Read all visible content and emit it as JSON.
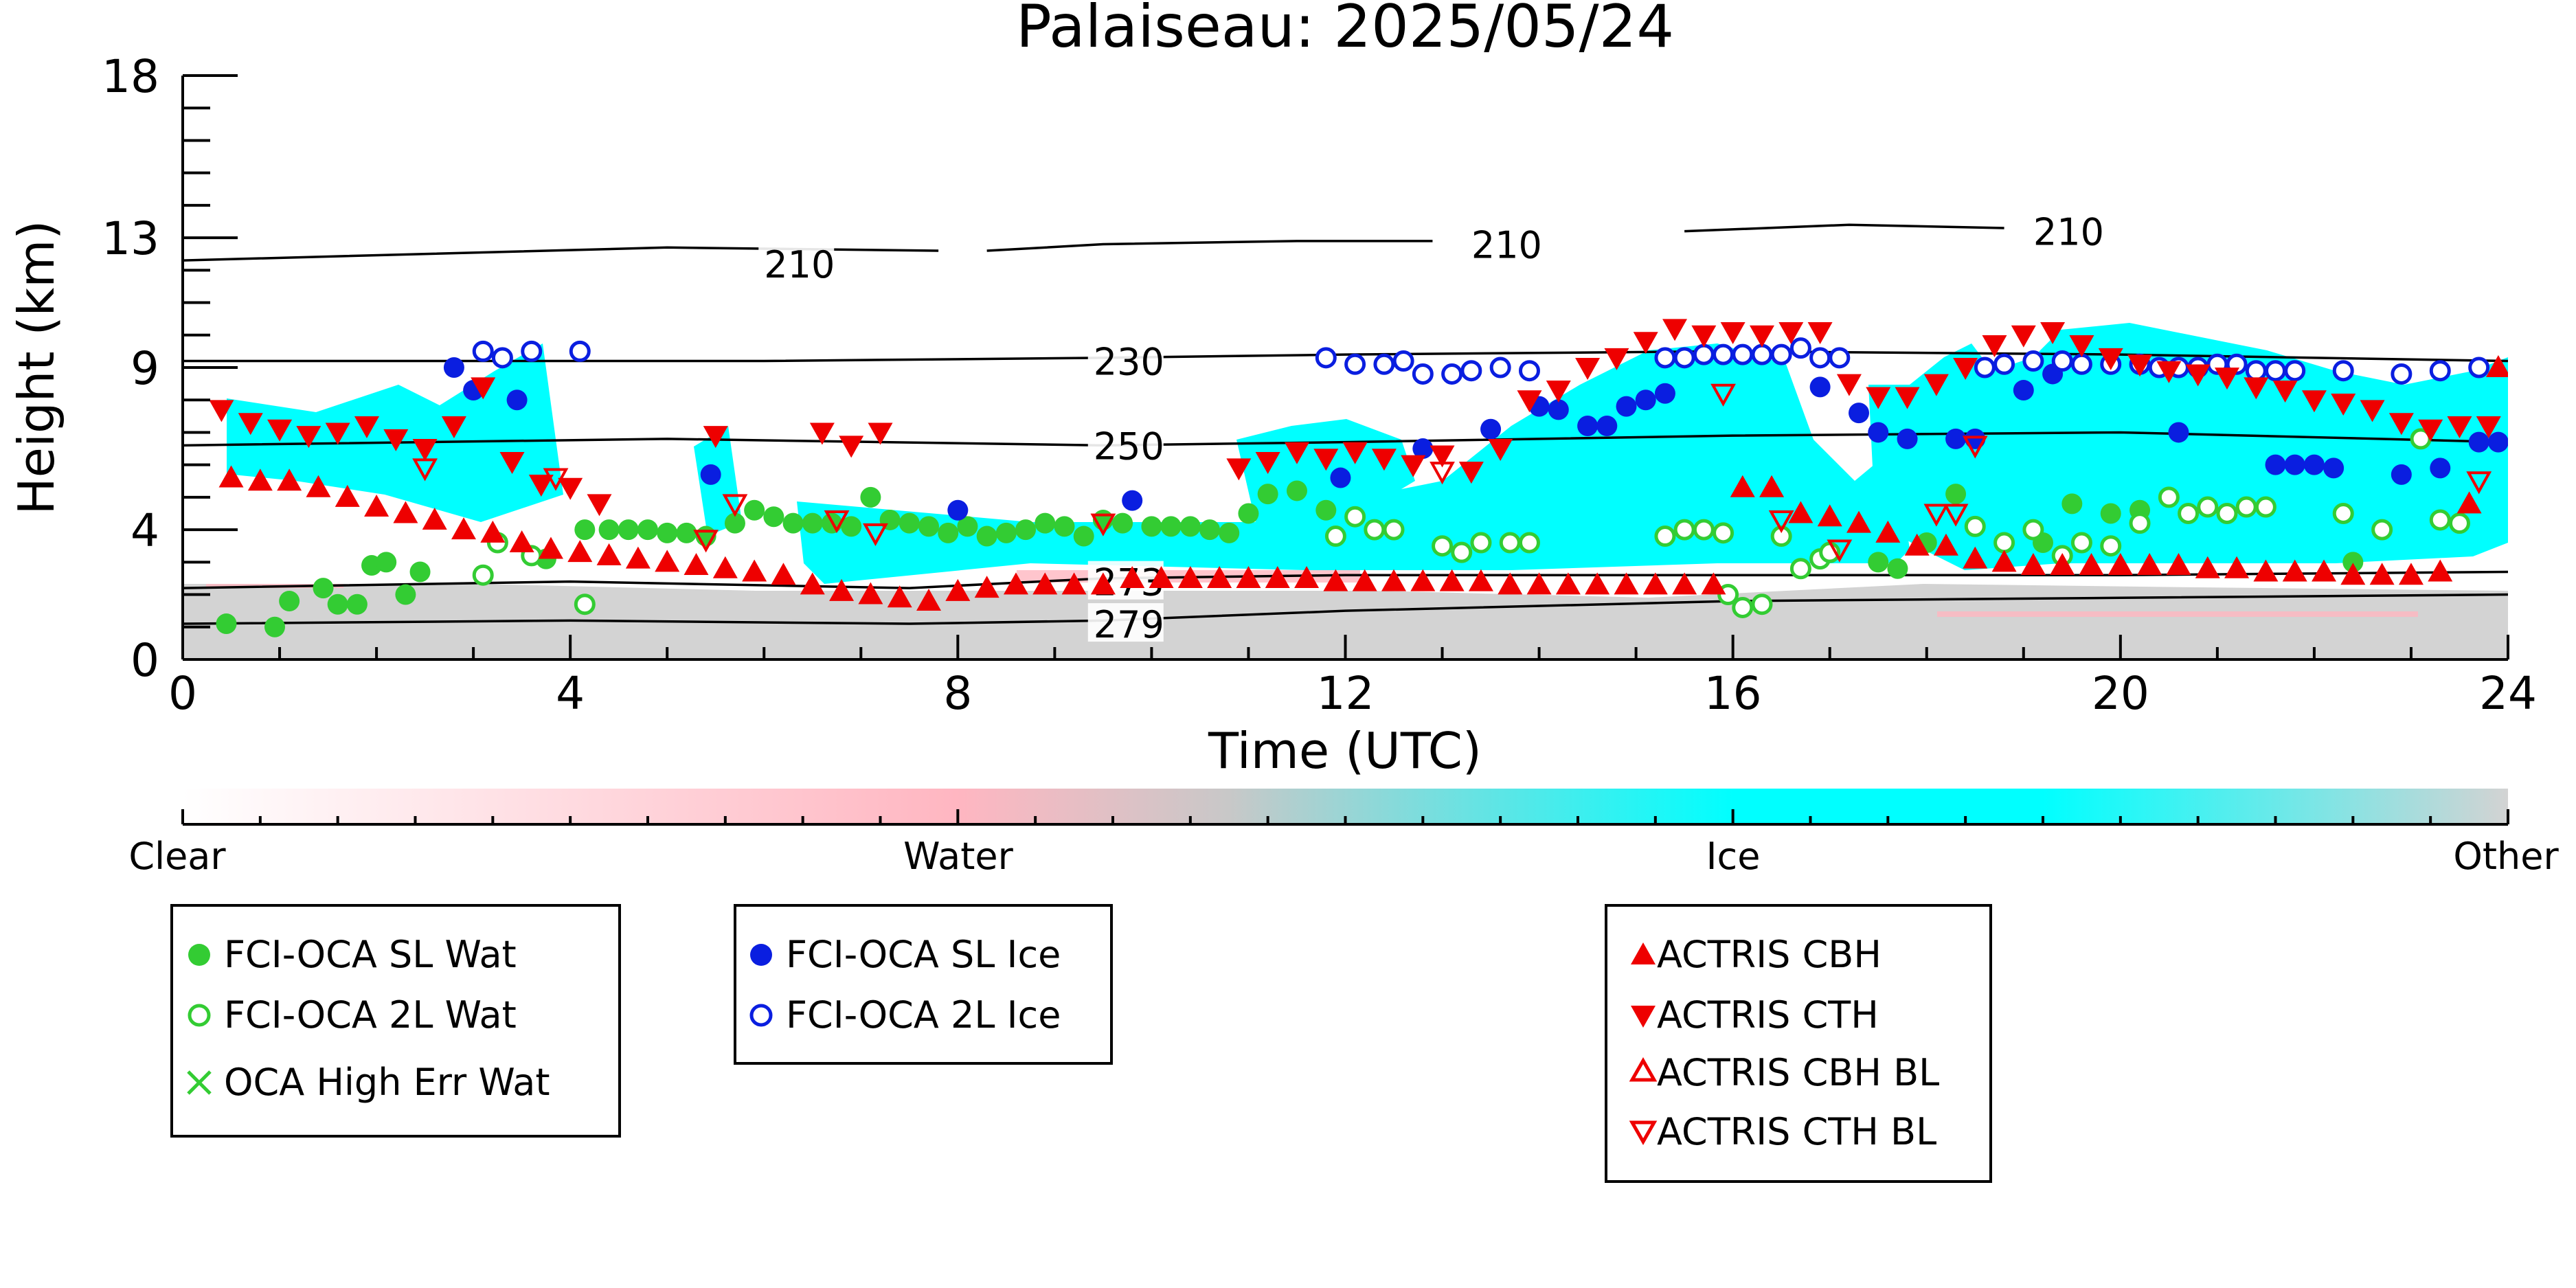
{
  "chart_data": {
    "type": "scatter",
    "title": "Palaiseau: 2025/05/24",
    "xlabel": "Time (UTC)",
    "ylabel": "Height (km)",
    "xlim": [
      0,
      24
    ],
    "ylim": [
      0,
      18
    ],
    "x_ticks": [
      "0",
      "4",
      "8",
      "12",
      "16",
      "20",
      "24"
    ],
    "y_ticks": [
      "0",
      "4",
      "9",
      "13",
      "18"
    ],
    "colorbar": {
      "labels": [
        "Clear",
        "Water",
        "Ice",
        "Other"
      ],
      "colors": [
        "#ffffff",
        "#ffb6c1",
        "#00ffff",
        "#d3d3d3"
      ]
    },
    "isotherms": [
      {
        "label": "210",
        "segments": [
          [
            [
              0,
              12.3
            ],
            [
              5,
              12.7
            ],
            [
              7.8,
              12.6
            ]
          ],
          [
            [
              8.3,
              12.6
            ],
            [
              9.5,
              12.8
            ],
            [
              11.5,
              12.9
            ],
            [
              12.9,
              12.9
            ]
          ],
          [
            [
              15.5,
              13.2
            ],
            [
              17.2,
              13.4
            ],
            [
              18.8,
              13.3
            ]
          ]
        ],
        "label_at": [
          [
            6.0,
            12.2
          ],
          [
            13.3,
            12.8
          ],
          [
            19.1,
            13.2
          ]
        ]
      },
      {
        "label": "230",
        "segments": [
          [
            [
              0,
              9.2
            ],
            [
              6,
              9.2
            ],
            [
              9.5,
              9.3
            ],
            [
              12,
              9.4
            ],
            [
              16,
              9.5
            ],
            [
              20,
              9.4
            ],
            [
              24,
              9.2
            ]
          ]
        ],
        "label_at": [
          [
            9.4,
            9.2
          ]
        ]
      },
      {
        "label": "250",
        "segments": [
          [
            [
              0,
              6.6
            ],
            [
              5,
              6.8
            ],
            [
              9.5,
              6.6
            ],
            [
              12,
              6.7
            ],
            [
              16,
              6.9
            ],
            [
              20,
              7.0
            ],
            [
              24,
              6.7
            ]
          ]
        ],
        "label_at": [
          [
            9.4,
            6.6
          ]
        ]
      },
      {
        "label": "273",
        "segments": [
          [
            [
              0,
              2.2
            ],
            [
              4,
              2.4
            ],
            [
              7.5,
              2.2
            ],
            [
              9.5,
              2.5
            ],
            [
              12,
              2.6
            ],
            [
              16,
              2.6
            ],
            [
              20,
              2.6
            ],
            [
              24,
              2.7
            ]
          ]
        ],
        "label_at": [
          [
            9.4,
            2.4
          ]
        ]
      },
      {
        "label": "279",
        "segments": [
          [
            [
              0,
              1.1
            ],
            [
              4,
              1.2
            ],
            [
              7.5,
              1.1
            ],
            [
              9.5,
              1.2
            ],
            [
              12,
              1.5
            ],
            [
              16,
              1.8
            ],
            [
              20,
              1.9
            ],
            [
              24,
              2.0
            ]
          ]
        ],
        "label_at": [
          [
            9.4,
            1.1
          ]
        ]
      }
    ],
    "series": [
      {
        "name": "FCI-OCA SL Wat",
        "color": "#33cc33",
        "marker": "filled-circle",
        "x": [
          0.45,
          0.95,
          1.1,
          1.45,
          1.6,
          1.8,
          1.95,
          2.1,
          2.3,
          2.45,
          3.75,
          4.15,
          4.4,
          4.6,
          4.8,
          5.0,
          5.2,
          5.4,
          5.7,
          5.9,
          6.1,
          6.3,
          6.5,
          6.7,
          6.9,
          7.1,
          7.3,
          7.5,
          7.7,
          7.9,
          8.1,
          8.3,
          8.5,
          8.7,
          8.9,
          9.1,
          9.3,
          9.5,
          9.7,
          10.0,
          10.2,
          10.4,
          10.6,
          10.8,
          11.0,
          11.2,
          11.5,
          11.8,
          17.5,
          17.7,
          18.0,
          18.3,
          19.2,
          19.5,
          19.9,
          20.2,
          22.4
        ],
        "y": [
          1.1,
          1.0,
          1.8,
          2.2,
          1.7,
          1.7,
          2.9,
          3.0,
          2.0,
          2.7,
          3.1,
          4.0,
          4.0,
          4.0,
          4.0,
          3.9,
          3.9,
          3.8,
          4.2,
          4.6,
          4.4,
          4.2,
          4.2,
          4.2,
          4.1,
          5.0,
          4.3,
          4.2,
          4.1,
          3.9,
          4.1,
          3.8,
          3.9,
          4.0,
          4.2,
          4.1,
          3.8,
          4.3,
          4.2,
          4.1,
          4.1,
          4.1,
          4.0,
          3.9,
          4.5,
          5.1,
          5.2,
          4.6,
          3.0,
          2.8,
          3.6,
          5.1,
          3.6,
          4.8,
          4.5,
          4.6,
          3.0
        ]
      },
      {
        "name": "FCI-OCA 2L Wat",
        "color": "#33cc33",
        "marker": "open-circle",
        "x": [
          3.1,
          3.25,
          3.6,
          4.15,
          11.9,
          12.1,
          12.3,
          12.5,
          13.0,
          13.2,
          13.4,
          13.7,
          13.9,
          15.3,
          15.5,
          15.7,
          15.9,
          15.95,
          16.1,
          16.3,
          16.5,
          16.7,
          16.9,
          17.0,
          18.5,
          18.8,
          19.1,
          19.4,
          19.6,
          19.9,
          20.2,
          20.5,
          20.7,
          20.9,
          21.1,
          21.3,
          21.5,
          22.3,
          22.7,
          23.1,
          23.3,
          23.5
        ],
        "y": [
          2.6,
          3.6,
          3.2,
          1.7,
          3.8,
          4.4,
          4.0,
          4.0,
          3.5,
          3.3,
          3.6,
          3.6,
          3.6,
          3.8,
          4.0,
          4.0,
          3.9,
          2.0,
          1.6,
          1.7,
          3.8,
          2.8,
          3.1,
          3.3,
          4.1,
          3.6,
          4.0,
          3.2,
          3.6,
          3.5,
          4.2,
          5.0,
          4.5,
          4.7,
          4.5,
          4.7,
          4.7,
          4.5,
          4.0,
          6.8,
          4.3,
          4.2
        ]
      },
      {
        "name": "OCA High Err Wat",
        "color": "#33cc33",
        "marker": "x",
        "x": [],
        "y": []
      },
      {
        "name": "FCI-OCA SL Ice",
        "color": "#0a1ee0",
        "marker": "filled-circle",
        "x": [
          2.8,
          3.0,
          3.45,
          5.45,
          8.0,
          9.8,
          11.95,
          12.8,
          13.5,
          14.0,
          14.2,
          14.5,
          14.7,
          14.9,
          15.1,
          15.3,
          16.9,
          17.3,
          17.5,
          17.8,
          18.3,
          18.5,
          19.0,
          19.3,
          20.6,
          21.6,
          21.8,
          22.0,
          22.2,
          22.9,
          23.3,
          23.7,
          23.9
        ],
        "y": [
          9.0,
          8.3,
          8.0,
          5.7,
          4.6,
          4.9,
          5.6,
          6.5,
          7.1,
          7.8,
          7.7,
          7.2,
          7.2,
          7.8,
          8.0,
          8.2,
          8.4,
          7.6,
          7.0,
          6.8,
          6.8,
          6.8,
          8.3,
          8.8,
          7.0,
          6.0,
          6.0,
          6.0,
          5.9,
          5.7,
          5.9,
          6.7,
          6.7
        ]
      },
      {
        "name": "FCI-OCA 2L Ice",
        "color": "#0a1ee0",
        "marker": "open-circle",
        "x": [
          3.1,
          3.3,
          3.6,
          4.1,
          11.8,
          12.1,
          12.4,
          12.6,
          12.8,
          13.1,
          13.3,
          13.6,
          13.9,
          15.3,
          15.5,
          15.7,
          15.9,
          16.1,
          16.3,
          16.5,
          16.7,
          16.9,
          17.1,
          18.6,
          18.8,
          19.1,
          19.4,
          19.6,
          19.9,
          20.2,
          20.4,
          20.6,
          20.8,
          21.0,
          21.2,
          21.4,
          21.6,
          21.8,
          22.3,
          22.9,
          23.3,
          23.7
        ],
        "y": [
          9.5,
          9.3,
          9.5,
          9.5,
          9.3,
          9.1,
          9.1,
          9.2,
          8.8,
          8.8,
          8.9,
          9.0,
          8.9,
          9.3,
          9.3,
          9.4,
          9.4,
          9.4,
          9.4,
          9.4,
          9.6,
          9.3,
          9.3,
          9.0,
          9.1,
          9.2,
          9.2,
          9.1,
          9.1,
          9.1,
          9.0,
          9.0,
          9.0,
          9.1,
          9.1,
          8.9,
          8.9,
          8.9,
          8.9,
          8.8,
          8.9,
          9.0
        ]
      },
      {
        "name": "ACTRIS CBH",
        "color": "#ee0000",
        "marker": "triangle-up",
        "x": [
          0.5,
          0.8,
          1.1,
          1.4,
          1.7,
          2.0,
          2.3,
          2.6,
          2.9,
          3.2,
          3.5,
          3.8,
          4.1,
          4.4,
          4.7,
          5.0,
          5.3,
          5.6,
          5.9,
          6.2,
          6.5,
          6.8,
          7.1,
          7.4,
          7.7,
          8.0,
          8.3,
          8.6,
          8.9,
          9.2,
          9.5,
          9.8,
          10.1,
          10.4,
          10.7,
          11.0,
          11.3,
          11.6,
          11.9,
          12.2,
          12.5,
          12.8,
          13.1,
          13.4,
          13.7,
          14.0,
          14.3,
          14.6,
          14.9,
          15.2,
          15.5,
          15.8,
          16.1,
          16.4,
          16.7,
          17.0,
          17.3,
          17.6,
          17.9,
          18.2,
          18.5,
          18.8,
          19.1,
          19.4,
          19.7,
          20.0,
          20.3,
          20.6,
          20.9,
          21.2,
          21.5,
          21.8,
          22.1,
          22.4,
          22.7,
          23.0,
          23.3,
          23.6,
          23.9
        ],
        "y": [
          5.6,
          5.5,
          5.5,
          5.3,
          5.0,
          4.7,
          4.5,
          4.3,
          4.0,
          3.9,
          3.6,
          3.4,
          3.3,
          3.2,
          3.1,
          3.0,
          2.9,
          2.8,
          2.7,
          2.6,
          2.3,
          2.1,
          2.0,
          1.9,
          1.8,
          2.1,
          2.2,
          2.3,
          2.3,
          2.3,
          2.3,
          2.5,
          2.5,
          2.5,
          2.5,
          2.5,
          2.5,
          2.5,
          2.4,
          2.4,
          2.4,
          2.4,
          2.4,
          2.4,
          2.3,
          2.3,
          2.3,
          2.3,
          2.3,
          2.3,
          2.3,
          2.3,
          5.3,
          5.3,
          4.5,
          4.4,
          4.2,
          3.9,
          3.5,
          3.5,
          3.1,
          3.0,
          2.9,
          2.9,
          2.9,
          2.9,
          2.9,
          2.9,
          2.8,
          2.8,
          2.7,
          2.7,
          2.7,
          2.6,
          2.6,
          2.6,
          2.7,
          4.8,
          9.0
        ]
      },
      {
        "name": "ACTRIS CTH",
        "color": "#ee0000",
        "marker": "triangle-down",
        "x": [
          0.4,
          0.7,
          1.0,
          1.3,
          1.6,
          1.9,
          2.2,
          2.5,
          2.8,
          3.1,
          3.4,
          3.7,
          4.0,
          4.3,
          5.5,
          6.6,
          6.9,
          7.2,
          10.9,
          11.2,
          11.5,
          11.8,
          12.1,
          12.4,
          12.7,
          13.0,
          13.3,
          13.6,
          13.9,
          14.2,
          14.5,
          14.8,
          15.1,
          15.4,
          15.7,
          16.0,
          16.3,
          16.6,
          16.9,
          17.2,
          17.5,
          17.8,
          18.1,
          18.4,
          18.7,
          19.0,
          19.3,
          19.6,
          19.9,
          20.2,
          20.5,
          20.8,
          21.1,
          21.4,
          21.7,
          22.0,
          22.3,
          22.6,
          22.9,
          23.2,
          23.5,
          23.8
        ],
        "y": [
          7.7,
          7.3,
          7.1,
          6.9,
          7.0,
          7.2,
          6.8,
          6.5,
          7.2,
          8.4,
          6.1,
          5.4,
          5.3,
          4.8,
          6.9,
          7.0,
          6.6,
          7.0,
          5.9,
          6.1,
          6.4,
          6.2,
          6.4,
          6.2,
          6.0,
          6.3,
          5.8,
          6.5,
          8.0,
          8.3,
          9.0,
          9.3,
          9.8,
          10.2,
          10.0,
          10.1,
          10.0,
          10.1,
          10.1,
          8.5,
          8.1,
          8.1,
          8.5,
          9.0,
          9.7,
          10.0,
          10.1,
          9.7,
          9.3,
          9.1,
          8.9,
          8.8,
          8.7,
          8.4,
          8.3,
          8.0,
          7.9,
          7.7,
          7.3,
          7.1,
          7.2,
          7.2
        ]
      },
      {
        "name": "ACTRIS CBH BL",
        "color": "#ee0000",
        "marker": "open-triangle-up",
        "x": [],
        "y": []
      },
      {
        "name": "ACTRIS CTH BL",
        "color": "#ee0000",
        "marker": "open-triangle-down",
        "x": [
          2.5,
          3.85,
          5.4,
          5.7,
          6.75,
          7.15,
          9.5,
          13.0,
          15.9,
          16.5,
          17.1,
          18.1,
          18.3,
          18.5,
          23.7
        ],
        "y": [
          5.9,
          5.6,
          3.7,
          4.8,
          4.3,
          3.9,
          4.2,
          5.8,
          8.2,
          4.3,
          3.4,
          4.5,
          4.5,
          6.6,
          5.5
        ]
      }
    ]
  }
}
